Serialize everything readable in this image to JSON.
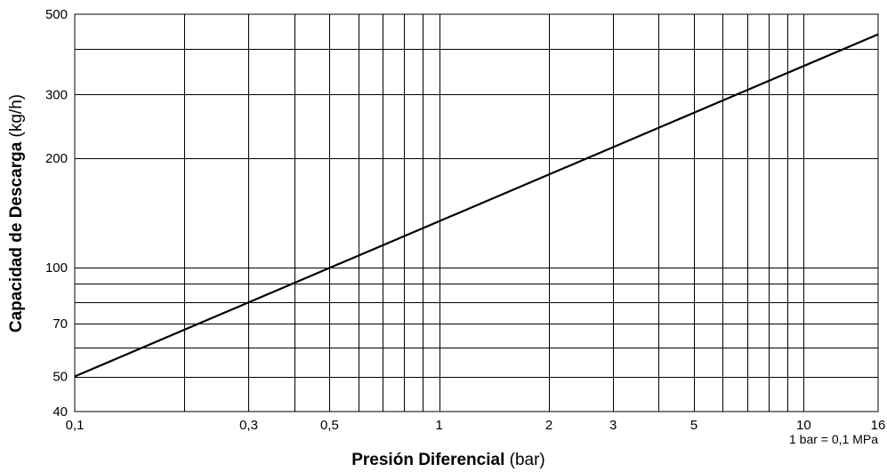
{
  "chart_data": {
    "type": "line",
    "xscale": "log",
    "yscale": "log",
    "xlim": [
      0.1,
      16
    ],
    "ylim": [
      40,
      500
    ],
    "x_ticks": [
      0.1,
      0.3,
      0.5,
      1,
      2,
      3,
      5,
      10,
      16
    ],
    "x_tick_labels": [
      "0,1",
      "0,3",
      "0,5",
      "1",
      "2",
      "3",
      "5",
      "10",
      "16"
    ],
    "x_grid": [
      0.2,
      0.3,
      0.4,
      0.5,
      0.6,
      0.7,
      0.8,
      0.9,
      1,
      2,
      3,
      4,
      5,
      6,
      7,
      8,
      9,
      10
    ],
    "y_ticks": [
      40,
      50,
      70,
      100,
      200,
      300,
      500
    ],
    "y_tick_labels": [
      "40",
      "50",
      "70",
      "100",
      "200",
      "300",
      "500"
    ],
    "y_grid": [
      50,
      60,
      70,
      80,
      90,
      100,
      200,
      300,
      400
    ],
    "grid": true,
    "xlabel_bold": "Presión Diferencial",
    "xlabel_unit": "(bar)",
    "ylabel_bold": "Capacidad de Descarga",
    "ylabel_unit": "(kg/h)",
    "note": "1 bar = 0,1 MPa",
    "series": [
      {
        "x": [
          0.1,
          16
        ],
        "y": [
          50,
          440
        ]
      }
    ]
  }
}
